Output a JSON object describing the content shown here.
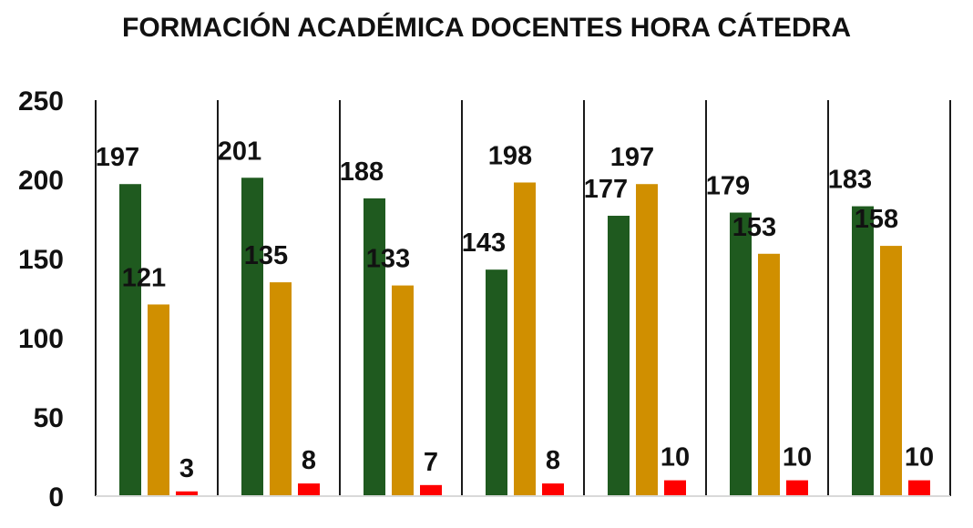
{
  "chart_data": {
    "type": "bar",
    "title": "FORMACIÓN ACADÉMICA DOCENTES HORA CÁTEDRA",
    "xlabel": "",
    "ylabel": "",
    "ylim": [
      0,
      250
    ],
    "yticks": [
      "0",
      "50",
      "100",
      "150",
      "200",
      "250"
    ],
    "groups": 7,
    "series": [
      {
        "color": "#1f5a1f",
        "values": [
          197,
          201,
          188,
          143,
          177,
          179,
          183
        ]
      },
      {
        "color": "#d08f00",
        "values": [
          121,
          135,
          133,
          198,
          197,
          153,
          158
        ]
      },
      {
        "color": "#ff0000",
        "values": [
          3,
          8,
          7,
          8,
          10,
          10,
          10
        ]
      }
    ],
    "grid": false,
    "group_separators": true
  }
}
